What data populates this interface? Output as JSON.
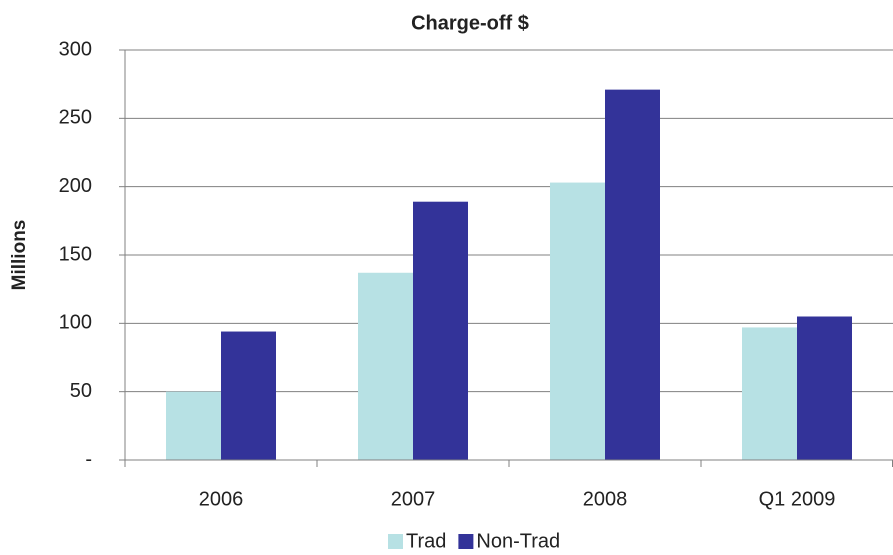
{
  "chart_data": {
    "type": "bar",
    "title": "Charge-off $",
    "y_label": "Millions",
    "categories": [
      "2006",
      "2007",
      "2008",
      "Q1 2009"
    ],
    "series": [
      {
        "name": "Trad",
        "color": "#b7e1e4",
        "values": [
          50,
          137,
          203,
          97
        ]
      },
      {
        "name": "Non-Trad",
        "color": "#333399",
        "values": [
          94,
          189,
          271,
          105
        ]
      }
    ],
    "ylim": [
      0,
      300
    ],
    "yticks": [
      {
        "value": 0,
        "label": "-"
      },
      50,
      100,
      150,
      200,
      250,
      300
    ],
    "grid": true,
    "legend": "bottom"
  }
}
